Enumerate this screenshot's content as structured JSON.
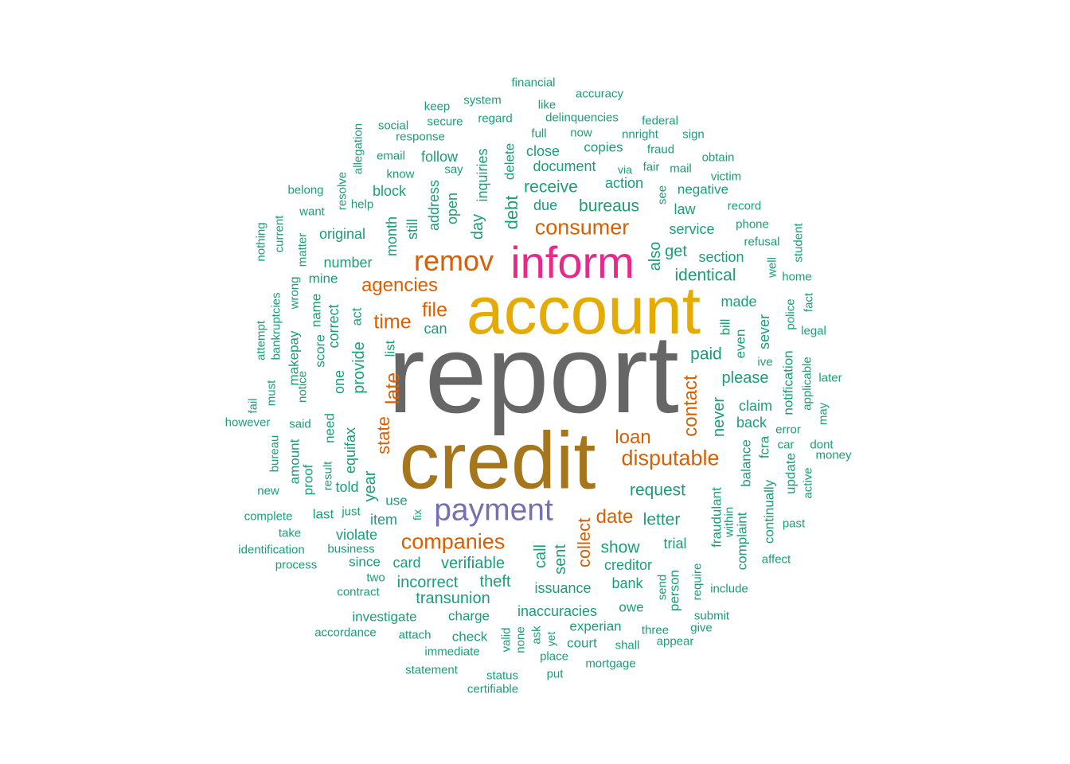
{
  "colors": {
    "background": "#ffffff",
    "teal": "#1b9e77",
    "orange": "#d95f02",
    "purple": "#7570b3",
    "pink": "#e7298a",
    "gold": "#e6ab02",
    "brown": "#a6761d",
    "gray": "#666666"
  },
  "words": [
    {
      "text": "report",
      "freq": 100,
      "color": "#666666",
      "rot": false
    },
    {
      "text": "account",
      "freq": 60,
      "color": "#e6ab02",
      "rot": false
    },
    {
      "text": "credit",
      "freq": 72,
      "color": "#a6761d",
      "rot": false
    },
    {
      "text": "inform",
      "freq": 40,
      "color": "#e7298a",
      "rot": false
    },
    {
      "text": "payment",
      "freq": 28,
      "color": "#7570b3",
      "rot": false
    },
    {
      "text": "remov",
      "freq": 26,
      "color": "#d95f02",
      "rot": false
    },
    {
      "text": "consumer",
      "freq": 19,
      "color": "#d95f02",
      "rot": false
    },
    {
      "text": "disputable",
      "freq": 19,
      "color": "#d95f02",
      "rot": false
    },
    {
      "text": "companies",
      "freq": 19,
      "color": "#d95f02",
      "rot": false
    },
    {
      "text": "agencies",
      "freq": 17,
      "color": "#d95f02",
      "rot": false
    },
    {
      "text": "time",
      "freq": 18,
      "color": "#d95f02",
      "rot": false
    },
    {
      "text": "file",
      "freq": 18,
      "color": "#d95f02",
      "rot": false
    },
    {
      "text": "loan",
      "freq": 17,
      "color": "#d95f02",
      "rot": false
    },
    {
      "text": "date",
      "freq": 17,
      "color": "#d95f02",
      "rot": false
    },
    {
      "text": "contact",
      "freq": 17,
      "color": "#d95f02",
      "rot": true
    },
    {
      "text": "late",
      "freq": 18,
      "color": "#d95f02",
      "rot": true
    },
    {
      "text": "state",
      "freq": 16,
      "color": "#d95f02",
      "rot": true
    },
    {
      "text": "collect",
      "freq": 16,
      "color": "#d95f02",
      "rot": true
    },
    {
      "text": "debt",
      "freq": 16,
      "color": "#1b9e77",
      "rot": true
    },
    {
      "text": "receive",
      "freq": 15,
      "color": "#1b9e77",
      "rot": false
    },
    {
      "text": "bureaus",
      "freq": 15,
      "color": "#1b9e77",
      "rot": false
    },
    {
      "text": "identical",
      "freq": 15,
      "color": "#1b9e77",
      "rot": false
    },
    {
      "text": "paid",
      "freq": 15,
      "color": "#1b9e77",
      "rot": false
    },
    {
      "text": "request",
      "freq": 15,
      "color": "#1b9e77",
      "rot": false
    },
    {
      "text": "letter",
      "freq": 15,
      "color": "#1b9e77",
      "rot": false
    },
    {
      "text": "show",
      "freq": 15,
      "color": "#1b9e77",
      "rot": false
    },
    {
      "text": "verifiable",
      "freq": 14,
      "color": "#1b9e77",
      "rot": false
    },
    {
      "text": "theft",
      "freq": 14,
      "color": "#1b9e77",
      "rot": false
    },
    {
      "text": "transunion",
      "freq": 14,
      "color": "#1b9e77",
      "rot": false
    },
    {
      "text": "incorrect",
      "freq": 14,
      "color": "#1b9e77",
      "rot": false
    },
    {
      "text": "issuance",
      "freq": 13,
      "color": "#1b9e77",
      "rot": false
    },
    {
      "text": "inaccuracies",
      "freq": 13,
      "color": "#1b9e77",
      "rot": false
    },
    {
      "text": "document",
      "freq": 13,
      "color": "#1b9e77",
      "rot": false
    },
    {
      "text": "due",
      "freq": 13,
      "color": "#1b9e77",
      "rot": false
    },
    {
      "text": "please",
      "freq": 14,
      "color": "#1b9e77",
      "rot": false
    },
    {
      "text": "creditor",
      "freq": 13,
      "color": "#1b9e77",
      "rot": false
    },
    {
      "text": "trial",
      "freq": 13,
      "color": "#1b9e77",
      "rot": false
    },
    {
      "text": "bank",
      "freq": 13,
      "color": "#1b9e77",
      "rot": false
    },
    {
      "text": "section",
      "freq": 13,
      "color": "#1b9e77",
      "rot": false
    },
    {
      "text": "made",
      "freq": 13,
      "color": "#1b9e77",
      "rot": false
    },
    {
      "text": "claim",
      "freq": 13,
      "color": "#1b9e77",
      "rot": false
    },
    {
      "text": "back",
      "freq": 13,
      "color": "#1b9e77",
      "rot": false
    },
    {
      "text": "card",
      "freq": 13,
      "color": "#1b9e77",
      "rot": false
    },
    {
      "text": "item",
      "freq": 13,
      "color": "#1b9e77",
      "rot": false
    },
    {
      "text": "violate",
      "freq": 13,
      "color": "#1b9e77",
      "rot": false
    },
    {
      "text": "number",
      "freq": 13,
      "color": "#1b9e77",
      "rot": false
    },
    {
      "text": "original",
      "freq": 13,
      "color": "#1b9e77",
      "rot": false
    },
    {
      "text": "block",
      "freq": 13,
      "color": "#1b9e77",
      "rot": false
    },
    {
      "text": "close",
      "freq": 13,
      "color": "#1b9e77",
      "rot": false
    },
    {
      "text": "action",
      "freq": 13,
      "color": "#1b9e77",
      "rot": false
    },
    {
      "text": "copies",
      "freq": 12,
      "color": "#1b9e77",
      "rot": false
    },
    {
      "text": "follow",
      "freq": 13,
      "color": "#1b9e77",
      "rot": false
    },
    {
      "text": "law",
      "freq": 13,
      "color": "#1b9e77",
      "rot": false
    },
    {
      "text": "service",
      "freq": 13,
      "color": "#1b9e77",
      "rot": false
    },
    {
      "text": "get",
      "freq": 14,
      "color": "#1b9e77",
      "rot": false
    },
    {
      "text": "negative",
      "freq": 12,
      "color": "#1b9e77",
      "rot": false
    },
    {
      "text": "can",
      "freq": 13,
      "color": "#1b9e77",
      "rot": false
    },
    {
      "text": "told",
      "freq": 13,
      "color": "#1b9e77",
      "rot": false
    },
    {
      "text": "charge",
      "freq": 12,
      "color": "#1b9e77",
      "rot": false
    },
    {
      "text": "owe",
      "freq": 12,
      "color": "#1b9e77",
      "rot": false
    },
    {
      "text": "experian",
      "freq": 12,
      "color": "#1b9e77",
      "rot": false
    },
    {
      "text": "court",
      "freq": 12,
      "color": "#1b9e77",
      "rot": false
    },
    {
      "text": "shall",
      "freq": 11,
      "color": "#1b9e77",
      "rot": false
    },
    {
      "text": "three",
      "freq": 11,
      "color": "#1b9e77",
      "rot": false
    },
    {
      "text": "investigate",
      "freq": 12,
      "color": "#1b9e77",
      "rot": false
    },
    {
      "text": "contract",
      "freq": 11,
      "color": "#1b9e77",
      "rot": false
    },
    {
      "text": "two",
      "freq": 11,
      "color": "#1b9e77",
      "rot": false
    },
    {
      "text": "since",
      "freq": 12,
      "color": "#1b9e77",
      "rot": false
    },
    {
      "text": "business",
      "freq": 11,
      "color": "#1b9e77",
      "rot": false
    },
    {
      "text": "last",
      "freq": 12,
      "color": "#1b9e77",
      "rot": false
    },
    {
      "text": "just",
      "freq": 11,
      "color": "#1b9e77",
      "rot": false
    },
    {
      "text": "use",
      "freq": 12,
      "color": "#1b9e77",
      "rot": false
    },
    {
      "text": "mine",
      "freq": 12,
      "color": "#1b9e77",
      "rot": false
    },
    {
      "text": "attach",
      "freq": 11,
      "color": "#1b9e77",
      "rot": false
    },
    {
      "text": "check",
      "freq": 12,
      "color": "#1b9e77",
      "rot": false
    },
    {
      "text": "immediate",
      "freq": 11,
      "color": "#1b9e77",
      "rot": false
    },
    {
      "text": "statement",
      "freq": 11,
      "color": "#1b9e77",
      "rot": false
    },
    {
      "text": "status",
      "freq": 11,
      "color": "#1b9e77",
      "rot": false
    },
    {
      "text": "certifiable",
      "freq": 11,
      "color": "#1b9e77",
      "rot": false
    },
    {
      "text": "put",
      "freq": 11,
      "color": "#1b9e77",
      "rot": false
    },
    {
      "text": "place",
      "freq": 11,
      "color": "#1b9e77",
      "rot": false
    },
    {
      "text": "mortgage",
      "freq": 11,
      "color": "#1b9e77",
      "rot": false
    },
    {
      "text": "appear",
      "freq": 11,
      "color": "#1b9e77",
      "rot": false
    },
    {
      "text": "give",
      "freq": 11,
      "color": "#1b9e77",
      "rot": false
    },
    {
      "text": "submit",
      "freq": 11,
      "color": "#1b9e77",
      "rot": false
    },
    {
      "text": "include",
      "freq": 11,
      "color": "#1b9e77",
      "rot": false
    },
    {
      "text": "affect",
      "freq": 11,
      "color": "#1b9e77",
      "rot": false
    },
    {
      "text": "past",
      "freq": 11,
      "color": "#1b9e77",
      "rot": false
    },
    {
      "text": "money",
      "freq": 11,
      "color": "#1b9e77",
      "rot": false
    },
    {
      "text": "dont",
      "freq": 11,
      "color": "#1b9e77",
      "rot": false
    },
    {
      "text": "car",
      "freq": 11,
      "color": "#1b9e77",
      "rot": false
    },
    {
      "text": "error",
      "freq": 11,
      "color": "#1b9e77",
      "rot": false
    },
    {
      "text": "ive",
      "freq": 11,
      "color": "#1b9e77",
      "rot": false
    },
    {
      "text": "later",
      "freq": 11,
      "color": "#1b9e77",
      "rot": false
    },
    {
      "text": "legal",
      "freq": 11,
      "color": "#1b9e77",
      "rot": false
    },
    {
      "text": "home",
      "freq": 11,
      "color": "#1b9e77",
      "rot": false
    },
    {
      "text": "refusal",
      "freq": 11,
      "color": "#1b9e77",
      "rot": false
    },
    {
      "text": "phone",
      "freq": 11,
      "color": "#1b9e77",
      "rot": false
    },
    {
      "text": "record",
      "freq": 11,
      "color": "#1b9e77",
      "rot": false
    },
    {
      "text": "victim",
      "freq": 11,
      "color": "#1b9e77",
      "rot": false
    },
    {
      "text": "obtain",
      "freq": 11,
      "color": "#1b9e77",
      "rot": false
    },
    {
      "text": "mail",
      "freq": 11,
      "color": "#1b9e77",
      "rot": false
    },
    {
      "text": "fair",
      "freq": 11,
      "color": "#1b9e77",
      "rot": false
    },
    {
      "text": "via",
      "freq": 10,
      "color": "#1b9e77",
      "rot": false
    },
    {
      "text": "fraud",
      "freq": 11,
      "color": "#1b9e77",
      "rot": false
    },
    {
      "text": "sign",
      "freq": 11,
      "color": "#1b9e77",
      "rot": false
    },
    {
      "text": "nnright",
      "freq": 11,
      "color": "#1b9e77",
      "rot": false
    },
    {
      "text": "federal",
      "freq": 11,
      "color": "#1b9e77",
      "rot": false
    },
    {
      "text": "now",
      "freq": 11,
      "color": "#1b9e77",
      "rot": false
    },
    {
      "text": "full",
      "freq": 11,
      "color": "#1b9e77",
      "rot": false
    },
    {
      "text": "delinquencies",
      "freq": 11,
      "color": "#1b9e77",
      "rot": false
    },
    {
      "text": "like",
      "freq": 11,
      "color": "#1b9e77",
      "rot": false
    },
    {
      "text": "accuracy",
      "freq": 11,
      "color": "#1b9e77",
      "rot": false
    },
    {
      "text": "financial",
      "freq": 11,
      "color": "#1b9e77",
      "rot": false
    },
    {
      "text": "system",
      "freq": 11,
      "color": "#1b9e77",
      "rot": false
    },
    {
      "text": "keep",
      "freq": 11,
      "color": "#1b9e77",
      "rot": false
    },
    {
      "text": "regard",
      "freq": 11,
      "color": "#1b9e77",
      "rot": false
    },
    {
      "text": "secure",
      "freq": 11,
      "color": "#1b9e77",
      "rot": false
    },
    {
      "text": "social",
      "freq": 11,
      "color": "#1b9e77",
      "rot": false
    },
    {
      "text": "response",
      "freq": 11,
      "color": "#1b9e77",
      "rot": false
    },
    {
      "text": "email",
      "freq": 11,
      "color": "#1b9e77",
      "rot": false
    },
    {
      "text": "know",
      "freq": 11,
      "color": "#1b9e77",
      "rot": false
    },
    {
      "text": "say",
      "freq": 11,
      "color": "#1b9e77",
      "rot": false
    },
    {
      "text": "help",
      "freq": 11,
      "color": "#1b9e77",
      "rot": false
    },
    {
      "text": "belong",
      "freq": 11,
      "color": "#1b9e77",
      "rot": false
    },
    {
      "text": "want",
      "freq": 11,
      "color": "#1b9e77",
      "rot": false
    },
    {
      "text": "said",
      "freq": 11,
      "color": "#1b9e77",
      "rot": false
    },
    {
      "text": "however",
      "freq": 11,
      "color": "#1b9e77",
      "rot": false
    },
    {
      "text": "new",
      "freq": 11,
      "color": "#1b9e77",
      "rot": false
    },
    {
      "text": "complete",
      "freq": 11,
      "color": "#1b9e77",
      "rot": false
    },
    {
      "text": "take",
      "freq": 11,
      "color": "#1b9e77",
      "rot": false
    },
    {
      "text": "identification",
      "freq": 11,
      "color": "#1b9e77",
      "rot": false
    },
    {
      "text": "process",
      "freq": 11,
      "color": "#1b9e77",
      "rot": false
    },
    {
      "text": "accordance",
      "freq": 11,
      "color": "#1b9e77",
      "rot": false
    },
    {
      "text": "sent",
      "freq": 14,
      "color": "#1b9e77",
      "rot": true
    },
    {
      "text": "call",
      "freq": 14,
      "color": "#1b9e77",
      "rot": true
    },
    {
      "text": "never",
      "freq": 14,
      "color": "#1b9e77",
      "rot": true
    },
    {
      "text": "also",
      "freq": 14,
      "color": "#1b9e77",
      "rot": true
    },
    {
      "text": "address",
      "freq": 13,
      "color": "#1b9e77",
      "rot": true
    },
    {
      "text": "open",
      "freq": 13,
      "color": "#1b9e77",
      "rot": true
    },
    {
      "text": "day",
      "freq": 14,
      "color": "#1b9e77",
      "rot": true
    },
    {
      "text": "inquiries",
      "freq": 13,
      "color": "#1b9e77",
      "rot": true
    },
    {
      "text": "delete",
      "freq": 12,
      "color": "#1b9e77",
      "rot": true
    },
    {
      "text": "still",
      "freq": 13,
      "color": "#1b9e77",
      "rot": true
    },
    {
      "text": "month",
      "freq": 13,
      "color": "#1b9e77",
      "rot": true
    },
    {
      "text": "provide",
      "freq": 14,
      "color": "#1b9e77",
      "rot": true
    },
    {
      "text": "equifax",
      "freq": 13,
      "color": "#1b9e77",
      "rot": true
    },
    {
      "text": "year",
      "freq": 14,
      "color": "#1b9e77",
      "rot": true
    },
    {
      "text": "one",
      "freq": 13,
      "color": "#1b9e77",
      "rot": true
    },
    {
      "text": "correct",
      "freq": 13,
      "color": "#1b9e77",
      "rot": true
    },
    {
      "text": "need",
      "freq": 12,
      "color": "#1b9e77",
      "rot": true
    },
    {
      "text": "act",
      "freq": 12,
      "color": "#1b9e77",
      "rot": true
    },
    {
      "text": "list",
      "freq": 12,
      "color": "#1b9e77",
      "rot": true
    },
    {
      "text": "score",
      "freq": 12,
      "color": "#1b9e77",
      "rot": true
    },
    {
      "text": "name",
      "freq": 12,
      "color": "#1b9e77",
      "rot": true
    },
    {
      "text": "makepay",
      "freq": 12,
      "color": "#1b9e77",
      "rot": true
    },
    {
      "text": "notice",
      "freq": 11,
      "color": "#1b9e77",
      "rot": true
    },
    {
      "text": "bankruptcies",
      "freq": 11,
      "color": "#1b9e77",
      "rot": true
    },
    {
      "text": "wrong",
      "freq": 11,
      "color": "#1b9e77",
      "rot": true
    },
    {
      "text": "matter",
      "freq": 11,
      "color": "#1b9e77",
      "rot": true
    },
    {
      "text": "resolve",
      "freq": 11,
      "color": "#1b9e77",
      "rot": true
    },
    {
      "text": "allegation",
      "freq": 11,
      "color": "#1b9e77",
      "rot": true
    },
    {
      "text": "nothing",
      "freq": 11,
      "color": "#1b9e77",
      "rot": true
    },
    {
      "text": "current",
      "freq": 11,
      "color": "#1b9e77",
      "rot": true
    },
    {
      "text": "attempt",
      "freq": 11,
      "color": "#1b9e77",
      "rot": true
    },
    {
      "text": "must",
      "freq": 11,
      "color": "#1b9e77",
      "rot": true
    },
    {
      "text": "fail",
      "freq": 11,
      "color": "#1b9e77",
      "rot": true
    },
    {
      "text": "bureau",
      "freq": 11,
      "color": "#1b9e77",
      "rot": true
    },
    {
      "text": "amount",
      "freq": 12,
      "color": "#1b9e77",
      "rot": true
    },
    {
      "text": "proof",
      "freq": 12,
      "color": "#1b9e77",
      "rot": true
    },
    {
      "text": "result",
      "freq": 11,
      "color": "#1b9e77",
      "rot": true
    },
    {
      "text": "fix",
      "freq": 10,
      "color": "#1b9e77",
      "rot": true
    },
    {
      "text": "valid",
      "freq": 11,
      "color": "#1b9e77",
      "rot": true
    },
    {
      "text": "none",
      "freq": 11,
      "color": "#1b9e77",
      "rot": true
    },
    {
      "text": "ask",
      "freq": 11,
      "color": "#1b9e77",
      "rot": true
    },
    {
      "text": "yet",
      "freq": 10,
      "color": "#1b9e77",
      "rot": true
    },
    {
      "text": "send",
      "freq": 11,
      "color": "#1b9e77",
      "rot": true
    },
    {
      "text": "person",
      "freq": 12,
      "color": "#1b9e77",
      "rot": true
    },
    {
      "text": "require",
      "freq": 11,
      "color": "#1b9e77",
      "rot": true
    },
    {
      "text": "fraudulant",
      "freq": 12,
      "color": "#1b9e77",
      "rot": true
    },
    {
      "text": "within",
      "freq": 11,
      "color": "#1b9e77",
      "rot": true
    },
    {
      "text": "complaint",
      "freq": 12,
      "color": "#1b9e77",
      "rot": true
    },
    {
      "text": "balance",
      "freq": 12,
      "color": "#1b9e77",
      "rot": true
    },
    {
      "text": "fcra",
      "freq": 12,
      "color": "#1b9e77",
      "rot": true
    },
    {
      "text": "continually",
      "freq": 12,
      "color": "#1b9e77",
      "rot": true
    },
    {
      "text": "update",
      "freq": 12,
      "color": "#1b9e77",
      "rot": true
    },
    {
      "text": "active",
      "freq": 11,
      "color": "#1b9e77",
      "rot": true
    },
    {
      "text": "notification",
      "freq": 12,
      "color": "#1b9e77",
      "rot": true
    },
    {
      "text": "applicable",
      "freq": 11,
      "color": "#1b9e77",
      "rot": true
    },
    {
      "text": "may",
      "freq": 11,
      "color": "#1b9e77",
      "rot": true
    },
    {
      "text": "police",
      "freq": 11,
      "color": "#1b9e77",
      "rot": true
    },
    {
      "text": "fact",
      "freq": 11,
      "color": "#1b9e77",
      "rot": true
    },
    {
      "text": "well",
      "freq": 11,
      "color": "#1b9e77",
      "rot": true
    },
    {
      "text": "student",
      "freq": 11,
      "color": "#1b9e77",
      "rot": true
    },
    {
      "text": "bill",
      "freq": 12,
      "color": "#1b9e77",
      "rot": true
    },
    {
      "text": "even",
      "freq": 12,
      "color": "#1b9e77",
      "rot": true
    },
    {
      "text": "sever",
      "freq": 13,
      "color": "#1b9e77",
      "rot": true
    },
    {
      "text": "see",
      "freq": 11,
      "color": "#1b9e77",
      "rot": true
    }
  ]
}
